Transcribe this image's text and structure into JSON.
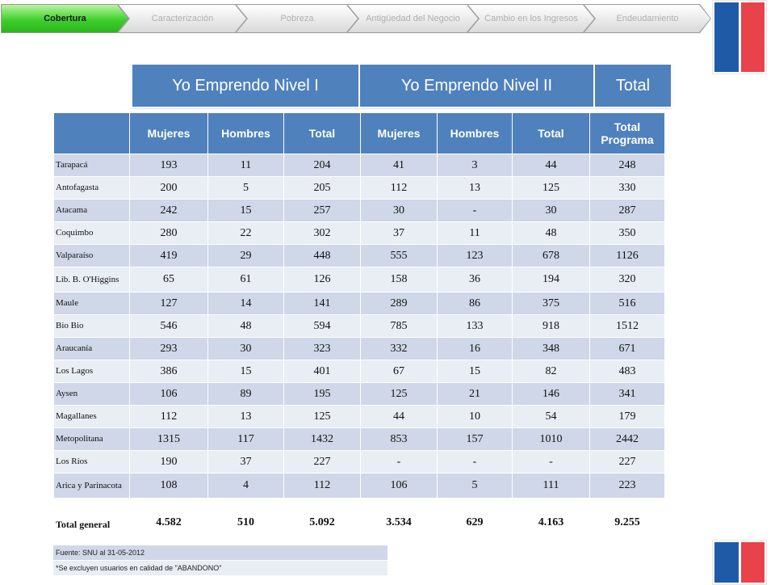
{
  "nav": {
    "tabs": [
      {
        "label": "Cobertura",
        "active": true
      },
      {
        "label": "Caracterización",
        "active": false
      },
      {
        "label": "Pobreza",
        "active": false
      },
      {
        "label": "Antigüedad del Negocio",
        "active": false
      },
      {
        "label": "Cambio en los Ingresos",
        "active": false
      },
      {
        "label": "Endeudamiento",
        "active": false
      }
    ]
  },
  "programs": {
    "level1": "Yo Emprendo Nivel I",
    "level2": "Yo Emprendo Nivel II",
    "total": "Total"
  },
  "table": {
    "headers": [
      "",
      "Mujeres",
      "Hombres",
      "Total",
      "Mujeres",
      "Hombres",
      "Total",
      "Total Programa"
    ],
    "rows": [
      [
        "Tarapacá",
        "193",
        "11",
        "204",
        "41",
        "3",
        "44",
        "248"
      ],
      [
        "Antofagasta",
        "200",
        "5",
        "205",
        "112",
        "13",
        "125",
        "330"
      ],
      [
        "Atacama",
        "242",
        "15",
        "257",
        "30",
        "-",
        "30",
        "287"
      ],
      [
        "Coquimbo",
        "280",
        "22",
        "302",
        "37",
        "11",
        "48",
        "350"
      ],
      [
        "Valparaíso",
        "419",
        "29",
        "448",
        "555",
        "123",
        "678",
        "1126"
      ],
      [
        "Lib. B. O'Higgins",
        "65",
        "61",
        "126",
        "158",
        "36",
        "194",
        "320"
      ],
      [
        "Maule",
        "127",
        "14",
        "141",
        "289",
        "86",
        "375",
        "516"
      ],
      [
        "Bio Bio",
        "546",
        "48",
        "594",
        "785",
        "133",
        "918",
        "1512"
      ],
      [
        "Araucanía",
        "293",
        "30",
        "323",
        "332",
        "16",
        "348",
        "671"
      ],
      [
        "Los Lagos",
        "386",
        "15",
        "401",
        "67",
        "15",
        "82",
        "483"
      ],
      [
        "Aysen",
        "106",
        "89",
        "195",
        "125",
        "21",
        "146",
        "341"
      ],
      [
        "Magallanes",
        "112",
        "13",
        "125",
        "44",
        "10",
        "54",
        "179"
      ],
      [
        "Metopolitana",
        "1315",
        "117",
        "1432",
        "853",
        "157",
        "1010",
        "2442"
      ],
      [
        "Los Ríos",
        "190",
        "37",
        "227",
        "-",
        "-",
        "-",
        "227"
      ],
      [
        "Arica y Parinacota",
        "108",
        "4",
        "112",
        "106",
        "5",
        "111",
        "223"
      ]
    ],
    "total_row": [
      "Total general",
      "4.582",
      "510",
      "5.092",
      "3.534",
      "629",
      "4.163",
      "9.255"
    ]
  },
  "notes": {
    "source": "Fuente: SNU al 31-05-2012",
    "exclusion": "*Se excluyen usuarios en calidad de \"ABANDONO\""
  },
  "colors": {
    "header_blue": "#4f81bd",
    "row_odd": "#cfd7e8",
    "row_even": "#e9edf4",
    "active_tab": "#3fcf2d",
    "flag_blue": "#1f5aa6",
    "flag_red": "#e8424a"
  }
}
